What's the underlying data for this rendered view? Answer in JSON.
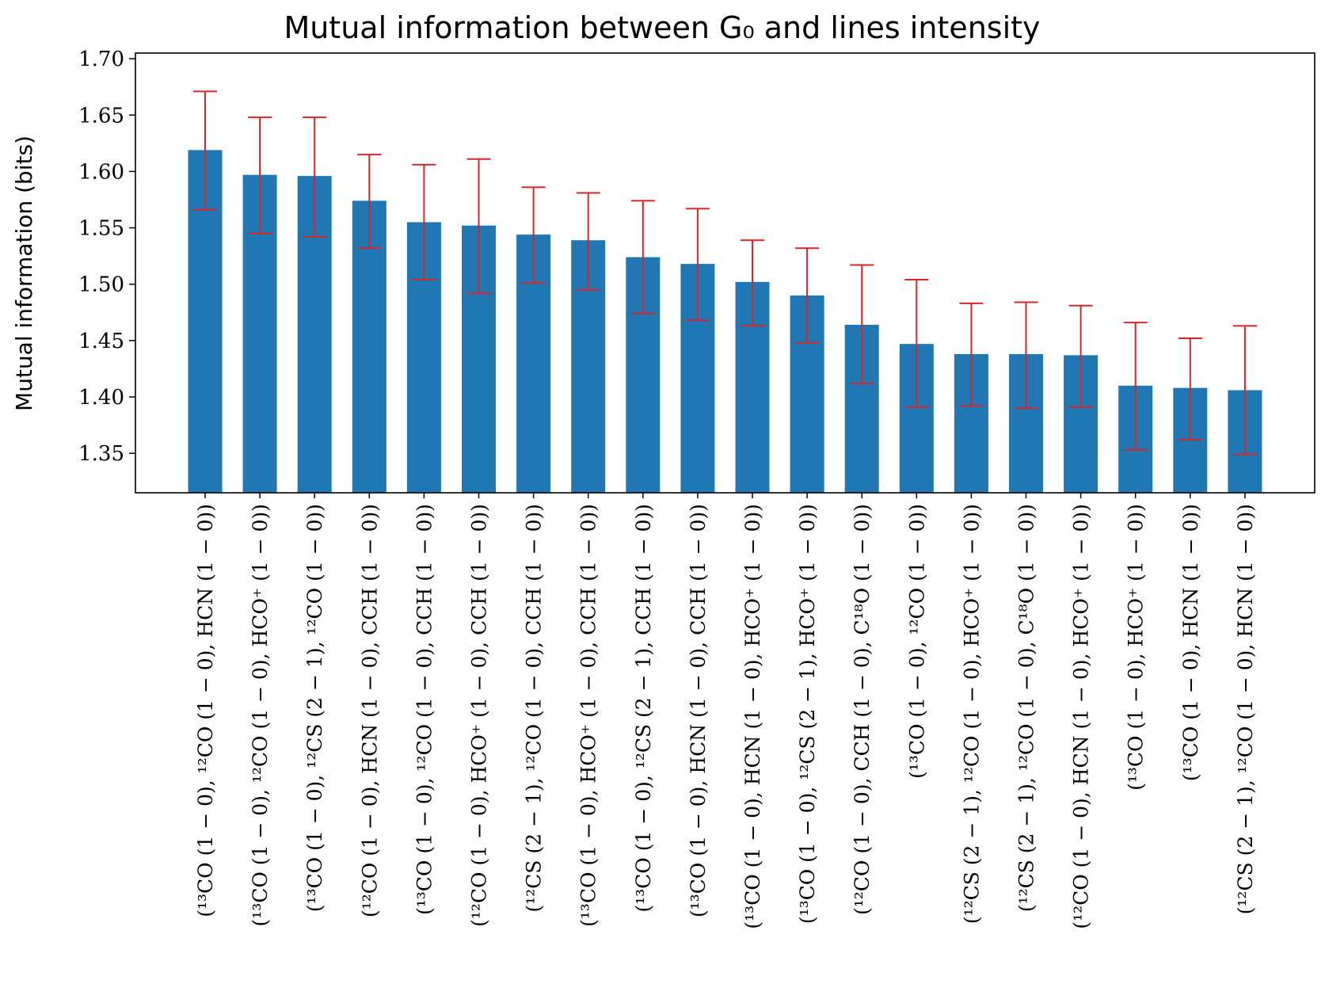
{
  "chart_data": {
    "type": "bar",
    "title": "Mutual information between G₀ and lines intensity",
    "ylabel": "Mutual information (bits)",
    "xlabel": "",
    "ylim": [
      1.315,
      1.705
    ],
    "yticks": [
      "1.35",
      "1.40",
      "1.45",
      "1.50",
      "1.55",
      "1.60",
      "1.65",
      "1.70"
    ],
    "grid": false,
    "legend": "none",
    "bar_color": "#1f77b4",
    "error_color": "#d62728",
    "categories": [
      "(¹³CO (1 − 0), ¹²CO (1 − 0), HCN (1 − 0))",
      "(¹³CO (1 − 0), ¹²CO (1 − 0), HCO⁺ (1 − 0))",
      "(¹³CO (1 − 0), ¹²CS (2 − 1), ¹²CO (1 − 0))",
      "(¹²CO (1 − 0), HCN (1 − 0), CCH (1 − 0))",
      "(¹³CO (1 − 0), ¹²CO (1 − 0), CCH (1 − 0))",
      "(¹²CO (1 − 0), HCO⁺ (1 − 0), CCH (1 − 0))",
      "(¹²CS (2 − 1), ¹²CO (1 − 0), CCH (1 − 0))",
      "(¹³CO (1 − 0), HCO⁺ (1 − 0), CCH (1 − 0))",
      "(¹³CO (1 − 0), ¹²CS (2 − 1), CCH (1 − 0))",
      "(¹³CO (1 − 0), HCN (1 − 0), CCH (1 − 0))",
      "(¹³CO (1 − 0), HCN (1 − 0), HCO⁺ (1 − 0))",
      "(¹³CO (1 − 0), ¹²CS (2 − 1), HCO⁺ (1 − 0))",
      "(¹²CO (1 − 0), CCH (1 − 0), C¹⁸O (1 − 0))",
      "(¹³CO (1 − 0), ¹²CO (1 − 0))",
      "(¹²CS (2 − 1), ¹²CO (1 − 0), HCO⁺ (1 − 0))",
      "(¹²CS (2 − 1), ¹²CO (1 − 0), C¹⁸O (1 − 0))",
      "(¹²CO (1 − 0), HCN (1 − 0), HCO⁺ (1 − 0))",
      "(¹³CO (1 − 0), HCO⁺ (1 − 0))",
      "(¹³CO (1 − 0), HCN (1 − 0))",
      "(¹²CS (2 − 1), ¹²CO (1 − 0), HCN (1 − 0))"
    ],
    "values": [
      1.619,
      1.597,
      1.596,
      1.574,
      1.555,
      1.552,
      1.544,
      1.539,
      1.524,
      1.518,
      1.502,
      1.49,
      1.464,
      1.447,
      1.438,
      1.438,
      1.437,
      1.41,
      1.408,
      1.406
    ],
    "error_low": [
      1.566,
      1.545,
      1.542,
      1.532,
      1.504,
      1.492,
      1.501,
      1.495,
      1.474,
      1.468,
      1.463,
      1.448,
      1.412,
      1.391,
      1.392,
      1.39,
      1.391,
      1.353,
      1.362,
      1.349
    ],
    "error_high": [
      1.671,
      1.648,
      1.648,
      1.615,
      1.606,
      1.611,
      1.586,
      1.581,
      1.574,
      1.567,
      1.539,
      1.532,
      1.517,
      1.504,
      1.483,
      1.484,
      1.481,
      1.466,
      1.452,
      1.463
    ]
  }
}
